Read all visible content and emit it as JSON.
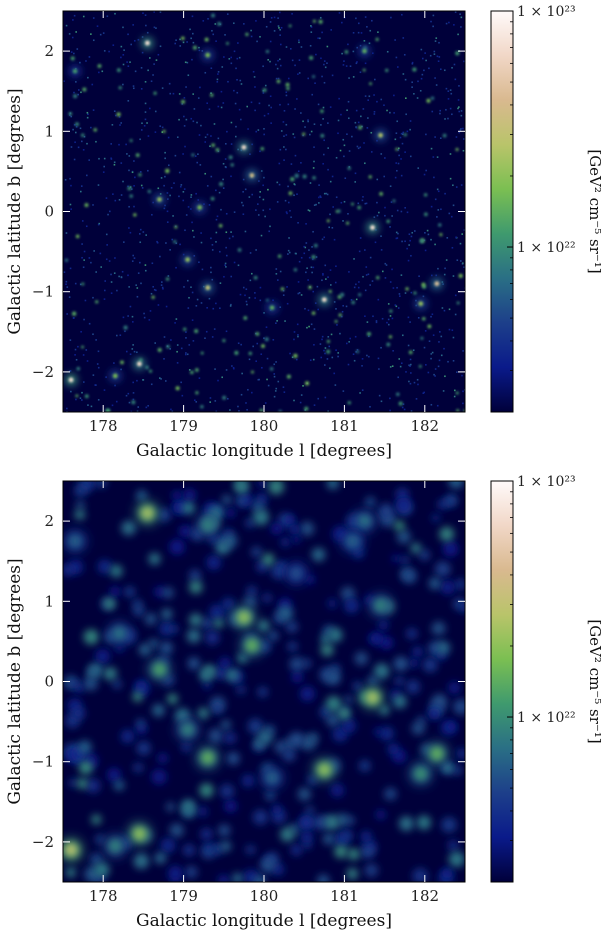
{
  "chart_data": [
    {
      "type": "heatmap",
      "title": "",
      "xlabel": "Galactic longitude l [degrees]",
      "ylabel": "Galactic latitude b [degrees]",
      "xlim": [
        177.5,
        182.5
      ],
      "ylim": [
        -2.5,
        2.5
      ],
      "x_ticks": [
        "178",
        "179",
        "180",
        "181",
        "182"
      ],
      "y_ticks": [
        "2",
        "1",
        "0",
        "−1",
        "−2"
      ],
      "smoothing": "none",
      "colorbar": {
        "label": "[GeV² cm⁻⁵ sr⁻¹]",
        "scale": "log",
        "range": [
          2e+21,
          1e+23
        ],
        "ticks": [
          "1 × 10²³",
          "1 × 10²²"
        ],
        "colormap": [
          "#00003a",
          "#0a1a8a",
          "#1d3f8a",
          "#2a6f85",
          "#3f9a6e",
          "#7bbf52",
          "#b9c46a",
          "#d9b98f",
          "#f1d7c7",
          "#fffafa"
        ]
      },
      "bright_sources": [
        {
          "l": 177.6,
          "b": -2.1,
          "level": 0.9
        },
        {
          "l": 178.45,
          "b": -1.9,
          "level": 0.8
        },
        {
          "l": 178.55,
          "b": 2.1,
          "level": 0.85
        },
        {
          "l": 179.05,
          "b": -0.6,
          "level": 0.5
        },
        {
          "l": 179.2,
          "b": 0.05,
          "level": 0.45
        },
        {
          "l": 179.3,
          "b": -0.95,
          "level": 0.6
        },
        {
          "l": 179.3,
          "b": 1.95,
          "level": 0.45
        },
        {
          "l": 179.75,
          "b": 0.8,
          "level": 0.8
        },
        {
          "l": 179.85,
          "b": 0.45,
          "level": 0.65
        },
        {
          "l": 180.75,
          "b": -1.1,
          "level": 0.8
        },
        {
          "l": 181.35,
          "b": -0.2,
          "level": 0.85
        },
        {
          "l": 181.45,
          "b": 0.95,
          "level": 0.55
        },
        {
          "l": 181.25,
          "b": 2.0,
          "level": 0.4
        },
        {
          "l": 181.95,
          "b": -1.15,
          "level": 0.5
        },
        {
          "l": 182.15,
          "b": -0.9,
          "level": 0.7
        },
        {
          "l": 177.65,
          "b": 1.75,
          "level": 0.35
        },
        {
          "l": 178.15,
          "b": -2.05,
          "level": 0.45
        },
        {
          "l": 180.1,
          "b": -1.2,
          "level": 0.4
        },
        {
          "l": 178.7,
          "b": 0.15,
          "level": 0.5
        }
      ]
    },
    {
      "type": "heatmap",
      "title": "",
      "xlabel": "Galactic longitude l [degrees]",
      "ylabel": "Galactic latitude b [degrees]",
      "xlim": [
        177.5,
        182.5
      ],
      "ylim": [
        -2.5,
        2.5
      ],
      "x_ticks": [
        "178",
        "179",
        "180",
        "181",
        "182"
      ],
      "y_ticks": [
        "2",
        "1",
        "0",
        "−1",
        "−2"
      ],
      "smoothing": "smoothed",
      "colorbar": {
        "label": "[GeV² cm⁻⁵ sr⁻¹]",
        "scale": "log",
        "range": [
          2e+21,
          1e+23
        ],
        "ticks": [
          "1 × 10²³",
          "1 × 10²²"
        ],
        "colormap": [
          "#00003a",
          "#0a1a8a",
          "#1d3f8a",
          "#2a6f85",
          "#3f9a6e",
          "#7bbf52",
          "#b9c46a",
          "#d9b98f",
          "#f1d7c7",
          "#fffafa"
        ]
      },
      "bright_sources": [
        {
          "l": 177.6,
          "b": -2.1,
          "level": 0.8
        },
        {
          "l": 178.45,
          "b": -1.9,
          "level": 0.7
        },
        {
          "l": 178.55,
          "b": 2.1,
          "level": 0.75
        },
        {
          "l": 179.05,
          "b": -0.6,
          "level": 0.45
        },
        {
          "l": 178.7,
          "b": 0.15,
          "level": 0.55
        },
        {
          "l": 179.3,
          "b": -0.95,
          "level": 0.6
        },
        {
          "l": 179.3,
          "b": 1.95,
          "level": 0.45
        },
        {
          "l": 179.75,
          "b": 0.8,
          "level": 0.7
        },
        {
          "l": 179.85,
          "b": 0.45,
          "level": 0.6
        },
        {
          "l": 180.75,
          "b": -1.1,
          "level": 0.7
        },
        {
          "l": 181.35,
          "b": -0.2,
          "level": 0.75
        },
        {
          "l": 181.45,
          "b": 0.95,
          "level": 0.45
        },
        {
          "l": 181.25,
          "b": 2.0,
          "level": 0.4
        },
        {
          "l": 181.95,
          "b": -1.15,
          "level": 0.5
        },
        {
          "l": 182.15,
          "b": -0.9,
          "level": 0.6
        },
        {
          "l": 177.65,
          "b": 1.75,
          "level": 0.35
        },
        {
          "l": 178.15,
          "b": -2.05,
          "level": 0.45
        },
        {
          "l": 180.1,
          "b": -1.2,
          "level": 0.35
        },
        {
          "l": 178.2,
          "b": 0.6,
          "level": 0.4
        },
        {
          "l": 180.4,
          "b": 1.35,
          "level": 0.3
        },
        {
          "l": 181.1,
          "b": 1.75,
          "level": 0.35
        }
      ]
    }
  ]
}
